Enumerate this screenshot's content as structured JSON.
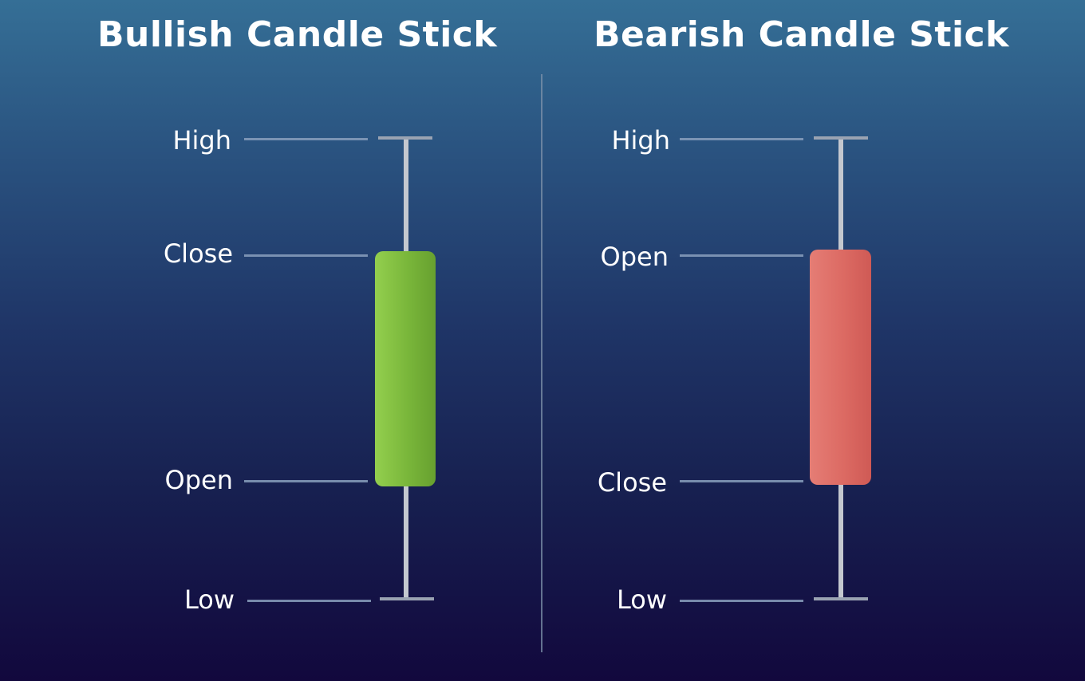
{
  "bullish": {
    "title": "Bullish Candle Stick",
    "labels": {
      "high": "High",
      "close": "Close",
      "open": "Open",
      "low": "Low"
    },
    "body_color": "#79b63a"
  },
  "bearish": {
    "title": "Bearish Candle Stick",
    "labels": {
      "high": "High",
      "open": "Open",
      "close": "Close",
      "low": "Low"
    },
    "body_color": "#dc6a63"
  },
  "colors": {
    "background_top": "#356f96",
    "background_bottom": "#12083d",
    "guide_line": "#8aa0bd",
    "wick": "#c4c8cf"
  }
}
